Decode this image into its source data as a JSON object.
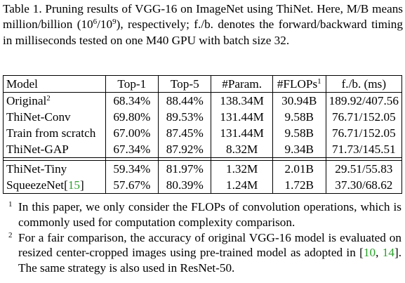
{
  "caption": {
    "prefix": "Table 1. Pruning results of VGG-16 on ImageNet using ThiNet. Here, M/B means million/billion (10",
    "exp1": "6",
    "slash": "/10",
    "exp2": "9",
    "suffix": "), respectively; f./b. denotes the forward/backward timing in milliseconds tested on one M40 GPU with batch size 32."
  },
  "table": {
    "headers": [
      "Model",
      "Top-1",
      "Top-5",
      "#Param.",
      "#FLOPs",
      "f./b. (ms)"
    ],
    "flops_header_mark": "1",
    "group1": [
      {
        "model": "Original",
        "mark": "2",
        "top1": "68.34%",
        "top5": "88.44%",
        "params": "138.34M",
        "flops": "30.94B",
        "timing": "189.92/407.56"
      },
      {
        "model": "ThiNet-Conv",
        "mark": "",
        "top1": "69.80%",
        "top5": "89.53%",
        "params": "131.44M",
        "flops": "9.58B",
        "timing": "76.71/152.05"
      },
      {
        "model": "Train from scratch",
        "mark": "",
        "top1": "67.00%",
        "top5": "87.45%",
        "params": "131.44M",
        "flops": "9.58B",
        "timing": "76.71/152.05"
      },
      {
        "model": "ThiNet-GAP",
        "mark": "",
        "top1": "67.34%",
        "top5": "87.92%",
        "params": "8.32M",
        "flops": "9.34B",
        "timing": "71.73/145.51"
      }
    ],
    "group2": [
      {
        "model": "ThiNet-Tiny",
        "cite": "",
        "top1": "59.34%",
        "top5": "81.97%",
        "params": "1.32M",
        "flops": "2.01B",
        "timing": "29.51/55.83"
      },
      {
        "model": "SqueezeNet[",
        "cite": "15",
        "cite_close": "]",
        "top1": "57.67%",
        "top5": "80.39%",
        "params": "1.24M",
        "flops": "1.72B",
        "timing": "37.30/68.62"
      }
    ]
  },
  "footnotes": [
    {
      "mark": "1",
      "text": "In this paper, we only consider the FLOPs of convolution operations, which is commonly used for computation complexity comparison."
    },
    {
      "mark": "2",
      "text_before": "For a fair comparison, the accuracy of original VGG-16 model is evaluated on resized center-cropped images using pre-trained model as adopted in [",
      "cite1": "10",
      "sep": ", ",
      "cite2": "14",
      "text_after": "]. The same strategy is also used in ResNet-50."
    }
  ],
  "colors": {
    "citation": "#2ca02c",
    "text": "#000000",
    "background": "#ffffff"
  }
}
